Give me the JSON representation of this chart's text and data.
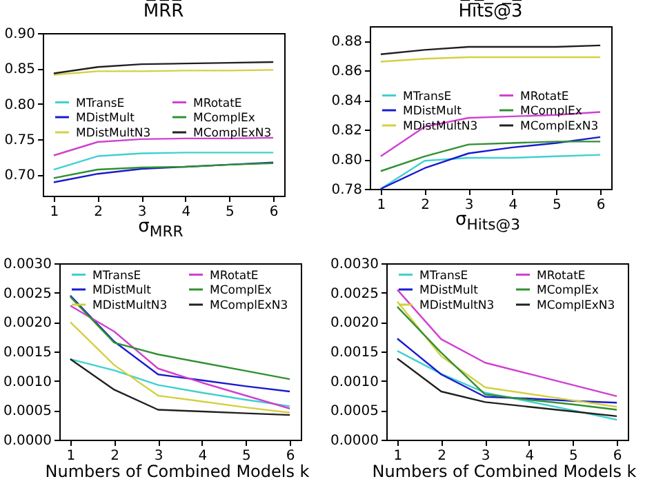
{
  "chart_data": [
    {
      "type": "line",
      "title": "M̅R̅R̅",
      "xlabel": "σ$_{MRR}$",
      "x": [
        1,
        2,
        3,
        4,
        5,
        6
      ],
      "xlim": [
        0.75,
        6.25
      ],
      "xticks": [
        1,
        2,
        3,
        4,
        5,
        6
      ],
      "ylim": [
        0.67,
        0.9
      ],
      "yticks": [
        {
          "value": 0.7,
          "label": "0.70"
        },
        {
          "value": 0.75,
          "label": "0.75"
        },
        {
          "value": 0.8,
          "label": "0.80"
        },
        {
          "value": 0.85,
          "label": "0.85"
        },
        {
          "value": 0.9,
          "label": "0.90"
        }
      ],
      "legend": "left",
      "series": [
        {
          "name": "MTransE",
          "color": "#40d0d0",
          "values": [
            0.707,
            0.726,
            0.73,
            0.731,
            0.731,
            0.731
          ]
        },
        {
          "name": "MDistMult",
          "color": "#1a1ad0",
          "values": [
            0.689,
            0.701,
            0.708,
            0.711,
            0.714,
            0.717
          ]
        },
        {
          "name": "MDistMultN3",
          "color": "#d4d040",
          "values": [
            0.841,
            0.846,
            0.846,
            0.847,
            0.847,
            0.848
          ]
        },
        {
          "name": "MRotatE",
          "color": "#d040d0",
          "values": [
            0.727,
            0.746,
            0.75,
            0.751,
            0.751,
            0.752
          ]
        },
        {
          "name": "MComplEx",
          "color": "#309030",
          "values": [
            0.695,
            0.707,
            0.71,
            0.711,
            0.714,
            0.716
          ]
        },
        {
          "name": "MComplExN3",
          "color": "#202020",
          "values": [
            0.843,
            0.852,
            0.856,
            0.857,
            0.858,
            0.859
          ]
        }
      ]
    },
    {
      "type": "line",
      "title": "H̅i̅t̅s̅@̅3̅",
      "xlabel": "σ$_{Hits@3}$",
      "x": [
        1,
        2,
        3,
        4,
        5,
        6
      ],
      "xlim": [
        0.75,
        6.25
      ],
      "xticks": [
        1,
        2,
        3,
        4,
        5,
        6
      ],
      "ylim": [
        0.78,
        0.89
      ],
      "yticks": [
        {
          "value": 0.78,
          "label": "0.78"
        },
        {
          "value": 0.8,
          "label": "0.80"
        },
        {
          "value": 0.82,
          "label": "0.82"
        },
        {
          "value": 0.84,
          "label": "0.84"
        },
        {
          "value": 0.86,
          "label": "0.86"
        },
        {
          "value": 0.88,
          "label": "0.88"
        }
      ],
      "legend": "left",
      "series": [
        {
          "name": "MTransE",
          "color": "#40d0d0",
          "values": [
            0.78,
            0.799,
            0.801,
            0.801,
            0.802,
            0.803
          ]
        },
        {
          "name": "MDistMult",
          "color": "#1a1ad0",
          "values": [
            0.78,
            0.794,
            0.804,
            0.808,
            0.811,
            0.815
          ]
        },
        {
          "name": "MDistMultN3",
          "color": "#d4d040",
          "values": [
            0.866,
            0.868,
            0.869,
            0.869,
            0.869,
            0.869
          ]
        },
        {
          "name": "MRotatE",
          "color": "#d040d0",
          "values": [
            0.802,
            0.822,
            0.828,
            0.829,
            0.83,
            0.832
          ]
        },
        {
          "name": "MComplEx",
          "color": "#309030",
          "values": [
            0.792,
            0.802,
            0.81,
            0.811,
            0.812,
            0.812
          ]
        },
        {
          "name": "MComplExN3",
          "color": "#202020",
          "values": [
            0.871,
            0.874,
            0.876,
            0.876,
            0.876,
            0.877
          ]
        }
      ]
    },
    {
      "type": "line",
      "xlabel": "Numbers of Combined Models k",
      "x": [
        1,
        2,
        3,
        4,
        5,
        6
      ],
      "xlim": [
        0.75,
        6.25
      ],
      "xticks": [
        1,
        2,
        3,
        4,
        5,
        6
      ],
      "ylim": [
        0,
        0.003
      ],
      "yticks": [
        {
          "value": 0,
          "label": "0.0000"
        },
        {
          "value": 0.0005,
          "label": "0.0005"
        },
        {
          "value": 0.001,
          "label": "0.0010"
        },
        {
          "value": 0.0015,
          "label": "0.0015"
        },
        {
          "value": 0.002,
          "label": "0.0020"
        },
        {
          "value": 0.0025,
          "label": "0.0025"
        },
        {
          "value": 0.003,
          "label": "0.0030"
        }
      ],
      "legend": "top",
      "series": [
        {
          "name": "MTransE",
          "color": "#40d0d0",
          "values": [
            0.00137,
            0.00118,
            0.00093,
            0.0008,
            0.00068,
            0.00057
          ]
        },
        {
          "name": "MDistMult",
          "color": "#1a1ad0",
          "values": [
            0.00245,
            0.00167,
            0.00111,
            0.00101,
            0.00091,
            0.00082
          ]
        },
        {
          "name": "MDistMultN3",
          "color": "#d4d040",
          "values": [
            0.002,
            0.00127,
            0.00075,
            0.00065,
            0.00055,
            0.00046
          ]
        },
        {
          "name": "MRotatE",
          "color": "#d040d0",
          "values": [
            0.00228,
            0.00184,
            0.00121,
            0.00097,
            0.00075,
            0.00053
          ]
        },
        {
          "name": "MComplEx",
          "color": "#309030",
          "values": [
            0.00243,
            0.00165,
            0.00145,
            0.00131,
            0.00117,
            0.00103
          ]
        },
        {
          "name": "MComplExN3",
          "color": "#202020",
          "values": [
            0.00137,
            0.00085,
            0.00051,
            0.00048,
            0.00045,
            0.00042
          ]
        }
      ]
    },
    {
      "type": "line",
      "xlabel": "Numbers of Combined Models k",
      "x": [
        1,
        2,
        3,
        4,
        5,
        6
      ],
      "xlim": [
        0.75,
        6.25
      ],
      "xticks": [
        1,
        2,
        3,
        4,
        5,
        6
      ],
      "ylim": [
        0,
        0.003
      ],
      "yticks": [
        {
          "value": 0,
          "label": "0.0000"
        },
        {
          "value": 0.0005,
          "label": "0.0005"
        },
        {
          "value": 0.001,
          "label": "0.0010"
        },
        {
          "value": 0.0015,
          "label": "0.0015"
        },
        {
          "value": 0.002,
          "label": "0.0020"
        },
        {
          "value": 0.0025,
          "label": "0.0025"
        },
        {
          "value": 0.003,
          "label": "0.0030"
        }
      ],
      "legend": "top",
      "series": [
        {
          "name": "MTransE",
          "color": "#40d0d0",
          "values": [
            0.00151,
            0.00112,
            0.0008,
            0.00065,
            0.0005,
            0.00034
          ]
        },
        {
          "name": "MDistMult",
          "color": "#1a1ad0",
          "values": [
            0.00172,
            0.00111,
            0.00073,
            0.0007,
            0.00066,
            0.00063
          ]
        },
        {
          "name": "MDistMultN3",
          "color": "#d4d040",
          "values": [
            0.00235,
            0.00142,
            0.00089,
            0.00078,
            0.00067,
            0.00056
          ]
        },
        {
          "name": "MRotatE",
          "color": "#d040d0",
          "values": [
            0.00255,
            0.00171,
            0.00131,
            0.00112,
            0.00093,
            0.00074
          ]
        },
        {
          "name": "MComplEx",
          "color": "#309030",
          "values": [
            0.00226,
            0.00148,
            0.00077,
            0.00068,
            0.0006,
            0.00051
          ]
        },
        {
          "name": "MComplExN3",
          "color": "#202020",
          "values": [
            0.00138,
            0.00082,
            0.00064,
            0.00056,
            0.00048,
            0.0004
          ]
        }
      ]
    }
  ]
}
